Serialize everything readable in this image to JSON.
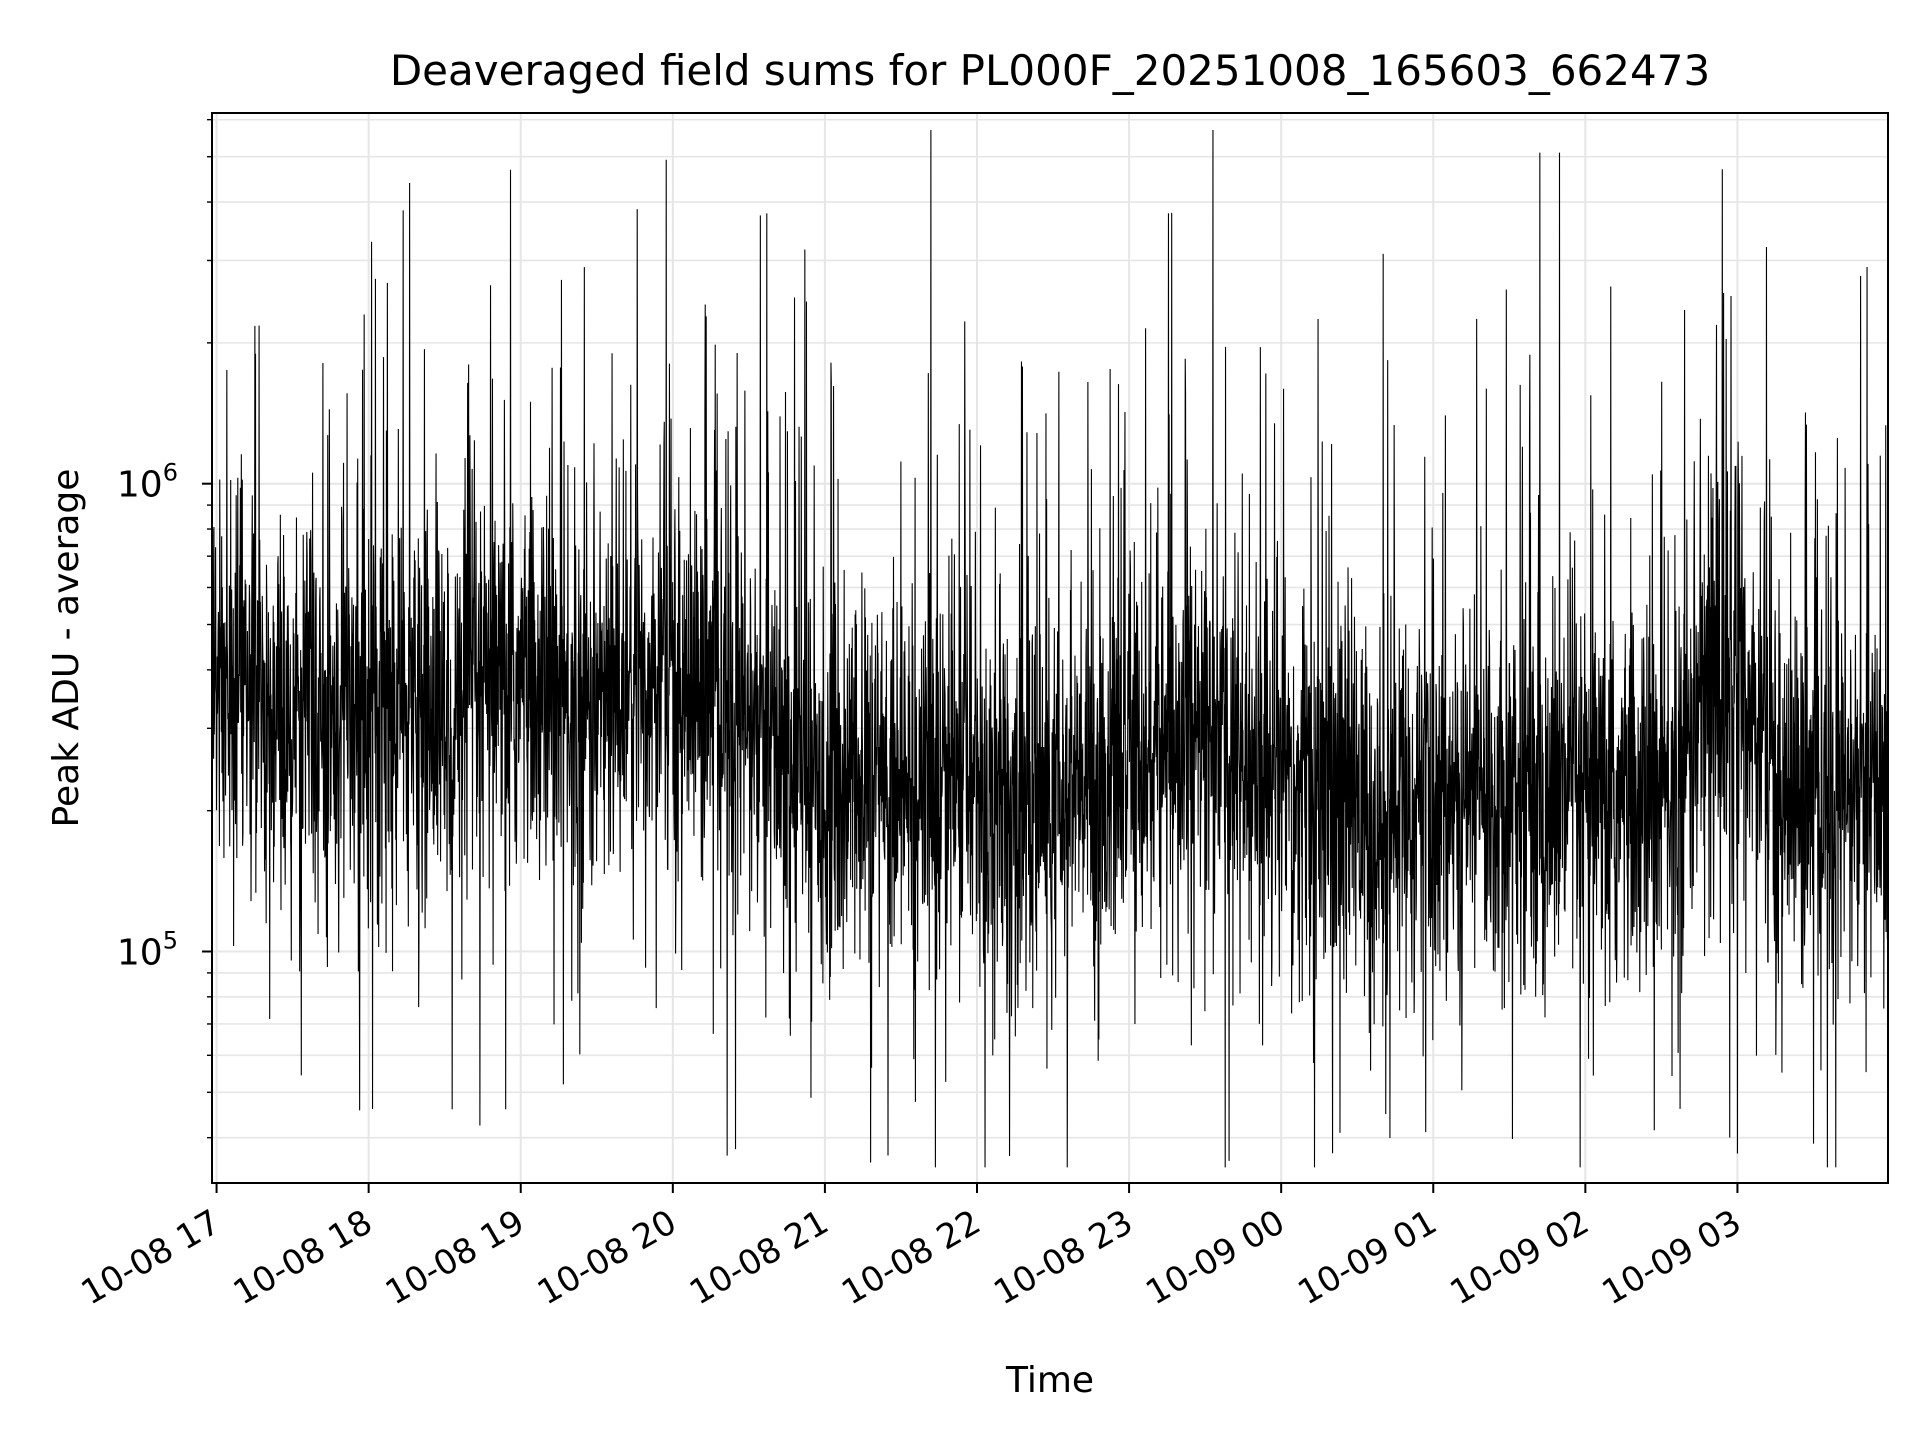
{
  "chart_data": {
    "type": "line",
    "title": "Deaveraged field sums for PL000F_20251008_165603_662473",
    "xlabel": "Time",
    "ylabel": "Peak ADU - average",
    "yscale": "log",
    "ylim": [
      32000,
      6200000
    ],
    "xlim_hours": [
      16.97,
      27.99
    ],
    "grid": true,
    "x_ticks": [
      {
        "label": "10-08 17",
        "hour": 17
      },
      {
        "label": "10-08 18",
        "hour": 18
      },
      {
        "label": "10-08 19",
        "hour": 19
      },
      {
        "label": "10-08 20",
        "hour": 20
      },
      {
        "label": "10-08 21",
        "hour": 21
      },
      {
        "label": "10-08 22",
        "hour": 22
      },
      {
        "label": "10-08 23",
        "hour": 23
      },
      {
        "label": "10-09 00",
        "hour": 24
      },
      {
        "label": "10-09 01",
        "hour": 25
      },
      {
        "label": "10-09 02",
        "hour": 26
      },
      {
        "label": "10-09 03",
        "hour": 27
      }
    ],
    "y_ticks": [
      {
        "base": "10",
        "exp": "5",
        "value": 100000
      },
      {
        "base": "10",
        "exp": "6",
        "value": 1000000
      }
    ],
    "series": [
      {
        "name": "Peak ADU - average",
        "color": "#000000",
        "description": "Noisy time series sampled roughly every 7 s from 10-08 ~16:58 to 10-09 ~04:00; envelope of typical level (median) with occasional spikes",
        "baseline_hours": [
          16.97,
          17.5,
          18.0,
          18.5,
          19.0,
          19.5,
          20.0,
          20.5,
          21.0,
          21.5,
          22.0,
          22.5,
          23.0,
          23.5,
          24.0,
          24.5,
          25.0,
          25.5,
          26.0,
          26.5,
          26.8,
          27.0,
          27.2,
          27.5,
          27.99
        ],
        "baseline_values": [
          380000,
          300000,
          350000,
          310000,
          370000,
          330000,
          400000,
          300000,
          220000,
          240000,
          230000,
          200000,
          250000,
          300000,
          210000,
          200000,
          210000,
          220000,
          200000,
          210000,
          350000,
          420000,
          250000,
          200000,
          220000
        ],
        "peaks": [
          {
            "hour": 17.97,
            "value": 2300000
          },
          {
            "hour": 19.6,
            "value": 1900000
          },
          {
            "hour": 20.8,
            "value": 2500000
          },
          {
            "hour": 22.73,
            "value": 1650000
          },
          {
            "hour": 23.37,
            "value": 1850000
          },
          {
            "hour": 24.67,
            "value": 3100000
          },
          {
            "hour": 25.48,
            "value": 2600000
          },
          {
            "hour": 25.7,
            "value": 5100000
          },
          {
            "hour": 25.83,
            "value": 5100000
          },
          {
            "hour": 26.9,
            "value": 4700000
          },
          {
            "hour": 26.95,
            "value": 4700000
          }
        ],
        "troughs": [
          {
            "hour": 18.55,
            "value": 46000
          },
          {
            "hour": 18.9,
            "value": 46000
          },
          {
            "hour": 19.28,
            "value": 52000
          },
          {
            "hour": 26.02,
            "value": 59000
          },
          {
            "hour": 26.95,
            "value": 40000
          },
          {
            "hour": 27.0,
            "value": 37000
          }
        ]
      }
    ]
  }
}
